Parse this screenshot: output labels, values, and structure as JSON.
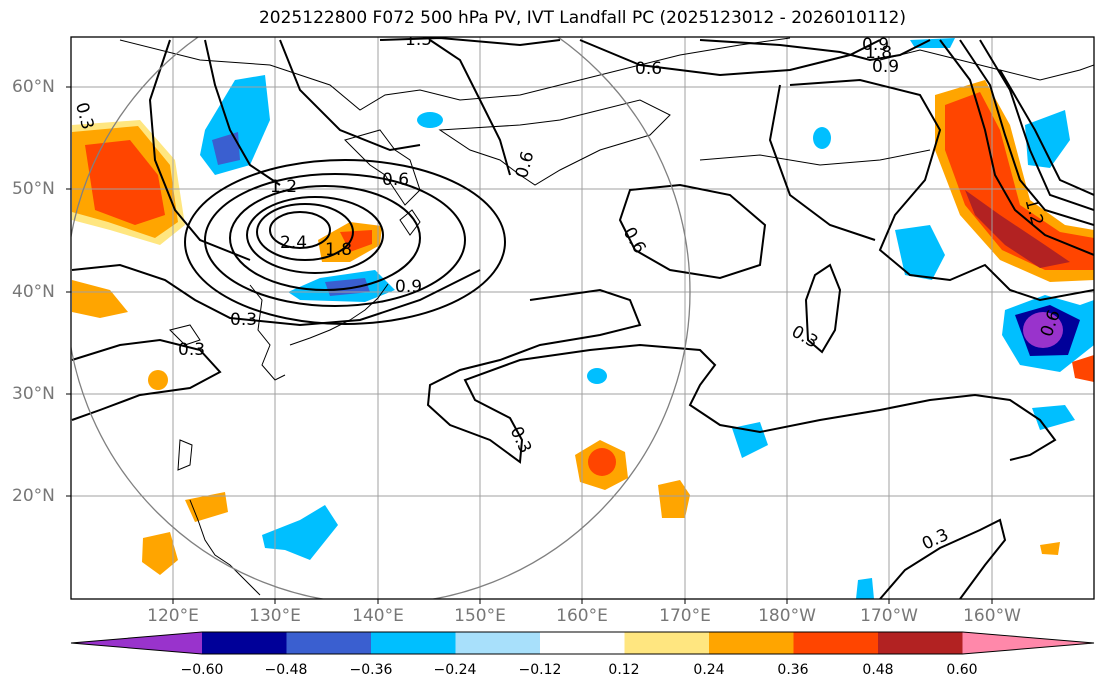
{
  "title": "2025122800 F072 500 hPa PV, IVT Landfall PC (2025123012 - 2026010112)",
  "lat_labels": [
    "60°N",
    "50°N",
    "40°N",
    "30°N",
    "20°N"
  ],
  "lon_labels": [
    "120°E",
    "130°E",
    "140°E",
    "150°E",
    "160°E",
    "170°E",
    "180°W",
    "170°W",
    "160°W"
  ],
  "contour_labels": [
    "0.3",
    "0.6",
    "0.9",
    "1.2",
    "1.5",
    "1.8",
    "2.4",
    "0.6",
    "0.3",
    "0.3",
    "0.6",
    "0.3",
    "0.9",
    "1.8",
    "0.9",
    "1.2",
    "0.6",
    "0.3",
    "0.3",
    "0.6"
  ],
  "colorbar": {
    "ticks": [
      "−0.60",
      "−0.48",
      "−0.36",
      "−0.24",
      "−0.12",
      "0.12",
      "0.24",
      "0.36",
      "0.48",
      "0.60"
    ],
    "colors": [
      "#9933cc",
      "#000099",
      "#3a5fd0",
      "#00bfff",
      "#a8e0fb",
      "#ffffff",
      "#ffe680",
      "#ffa500",
      "#ff4500",
      "#b22222",
      "#ff88aa"
    ]
  }
}
